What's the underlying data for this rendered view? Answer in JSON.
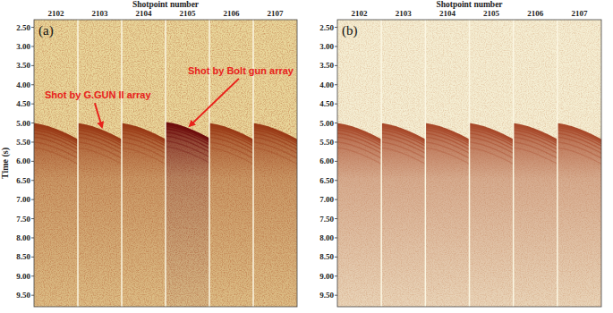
{
  "chart_data": [
    {
      "type": "seismic",
      "title": "(a)",
      "x_label": "Shotpoint number",
      "y_label": "Time (s)",
      "categories": [
        "2102",
        "2103",
        "2104",
        "2105",
        "2106",
        "2107"
      ],
      "values": [
        5.03,
        5.03,
        5.03,
        5.0,
        5.03,
        5.03
      ],
      "colors": [
        "#9a3a16",
        "#9a3a16",
        "#9a3a16",
        "#6e0c0c",
        "#9a3a16",
        "#9a3a16"
      ],
      "ylim": [
        2.3,
        9.8
      ],
      "yticks": [
        {
          "value": 2.5,
          "label": "2.50"
        },
        {
          "value": 3.0,
          "label": "3.00"
        },
        {
          "value": 3.5,
          "label": "3.50"
        },
        {
          "value": 4.0,
          "label": "4.00"
        },
        {
          "value": 4.5,
          "label": "4.50"
        },
        {
          "value": 5.0,
          "label": "5.00"
        },
        {
          "value": 5.5,
          "label": "5.50"
        },
        {
          "value": 6.0,
          "label": "6.00"
        },
        {
          "value": 6.5,
          "label": "6.50"
        },
        {
          "value": 7.0,
          "label": "7.00"
        },
        {
          "value": 7.5,
          "label": "7.50"
        },
        {
          "value": 8.0,
          "label": "8.00"
        },
        {
          "value": 8.5,
          "label": "8.50"
        },
        {
          "value": 9.0,
          "label": "9.00"
        },
        {
          "value": 9.5,
          "label": "9.50"
        }
      ],
      "annotations": [
        {
          "text": "Shot by G.GUN II array",
          "category": "2103"
        },
        {
          "text": "Shot by Bolt gun array",
          "category": "2105"
        }
      ]
    },
    {
      "type": "seismic",
      "title": "(b)",
      "x_label": "Shotpoint number",
      "categories": [
        "2102",
        "2103",
        "2104",
        "2105",
        "2106",
        "2107"
      ],
      "values": [
        5.03,
        5.03,
        5.03,
        5.03,
        5.03,
        5.03
      ],
      "colors": [
        "#a8492a",
        "#a8492a",
        "#a8492a",
        "#a8492a",
        "#a8492a",
        "#a8492a"
      ],
      "ylim": [
        2.3,
        9.8
      ],
      "yticks": [
        {
          "value": 2.5,
          "label": "2.50"
        },
        {
          "value": 3.0,
          "label": "3.00"
        },
        {
          "value": 3.5,
          "label": "3.50"
        },
        {
          "value": 4.0,
          "label": "4.00"
        },
        {
          "value": 4.5,
          "label": "4.50"
        },
        {
          "value": 5.0,
          "label": "5.00"
        },
        {
          "value": 5.5,
          "label": "5.50"
        },
        {
          "value": 6.0,
          "label": "6.00"
        },
        {
          "value": 6.5,
          "label": "6.50"
        },
        {
          "value": 7.0,
          "label": "7.00"
        },
        {
          "value": 7.5,
          "label": "7.50"
        },
        {
          "value": 8.0,
          "label": "8.00"
        },
        {
          "value": 8.5,
          "label": "8.50"
        },
        {
          "value": 9.0,
          "label": "9.00"
        },
        {
          "value": 9.5,
          "label": "9.50"
        }
      ]
    }
  ]
}
